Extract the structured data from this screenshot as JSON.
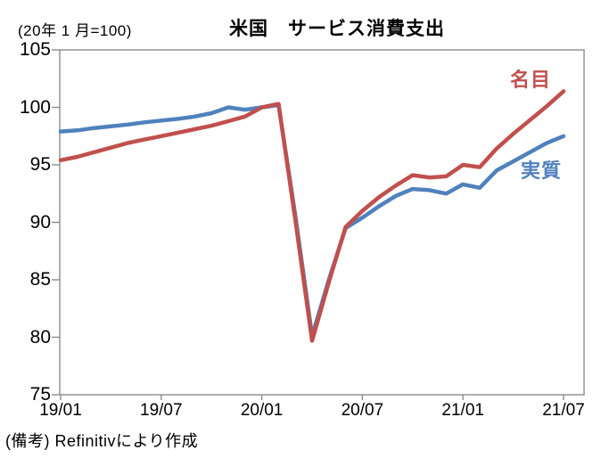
{
  "header": {
    "index_note": "(20年 1 月=100)",
    "title": "米国　サービス消費支出"
  },
  "footer": {
    "source": "(備考) Refinitivにより作成"
  },
  "chart_data": {
    "type": "line",
    "title": "米国　サービス消費支出",
    "index_note": "(20年 1 月=100)",
    "xlabel": "",
    "ylabel": "",
    "ylim": [
      75,
      105
    ],
    "y_ticks": [
      105,
      100,
      95,
      90,
      85,
      80,
      75
    ],
    "x_tick_labels": [
      "19/01",
      "19/07",
      "20/01",
      "20/07",
      "21/01",
      "21/07"
    ],
    "grid": false,
    "legend_position": "inline-annotations",
    "axis_color": "#8c8c8c",
    "x": [
      "19/01",
      "19/02",
      "19/03",
      "19/04",
      "19/05",
      "19/06",
      "19/07",
      "19/08",
      "19/09",
      "19/10",
      "19/11",
      "19/12",
      "20/01",
      "20/02",
      "20/03",
      "20/04",
      "20/05",
      "20/06",
      "20/07",
      "20/08",
      "20/09",
      "20/10",
      "20/11",
      "20/12",
      "21/01",
      "21/02",
      "21/03",
      "21/04",
      "21/05",
      "21/06",
      "21/07"
    ],
    "series": [
      {
        "name": "実質",
        "color": "#4F81BD",
        "values": [
          97.9,
          98.0,
          98.2,
          98.35,
          98.5,
          98.7,
          98.85,
          99.0,
          99.2,
          99.5,
          100.0,
          99.8,
          100.0,
          100.2,
          90.6,
          80.1,
          85.0,
          89.5,
          90.4,
          91.4,
          92.3,
          92.9,
          92.8,
          92.5,
          93.3,
          93.0,
          94.5,
          95.3,
          96.1,
          96.9,
          97.5
        ]
      },
      {
        "name": "名目",
        "color": "#C0504D",
        "values": [
          95.4,
          95.7,
          96.1,
          96.5,
          96.9,
          97.2,
          97.5,
          97.8,
          98.1,
          98.4,
          98.8,
          99.2,
          100.0,
          100.3,
          90.2,
          79.7,
          84.8,
          89.6,
          91.0,
          92.2,
          93.2,
          94.1,
          93.9,
          94.0,
          95.0,
          94.8,
          96.4,
          97.7,
          98.9,
          100.1,
          101.4
        ]
      }
    ]
  }
}
